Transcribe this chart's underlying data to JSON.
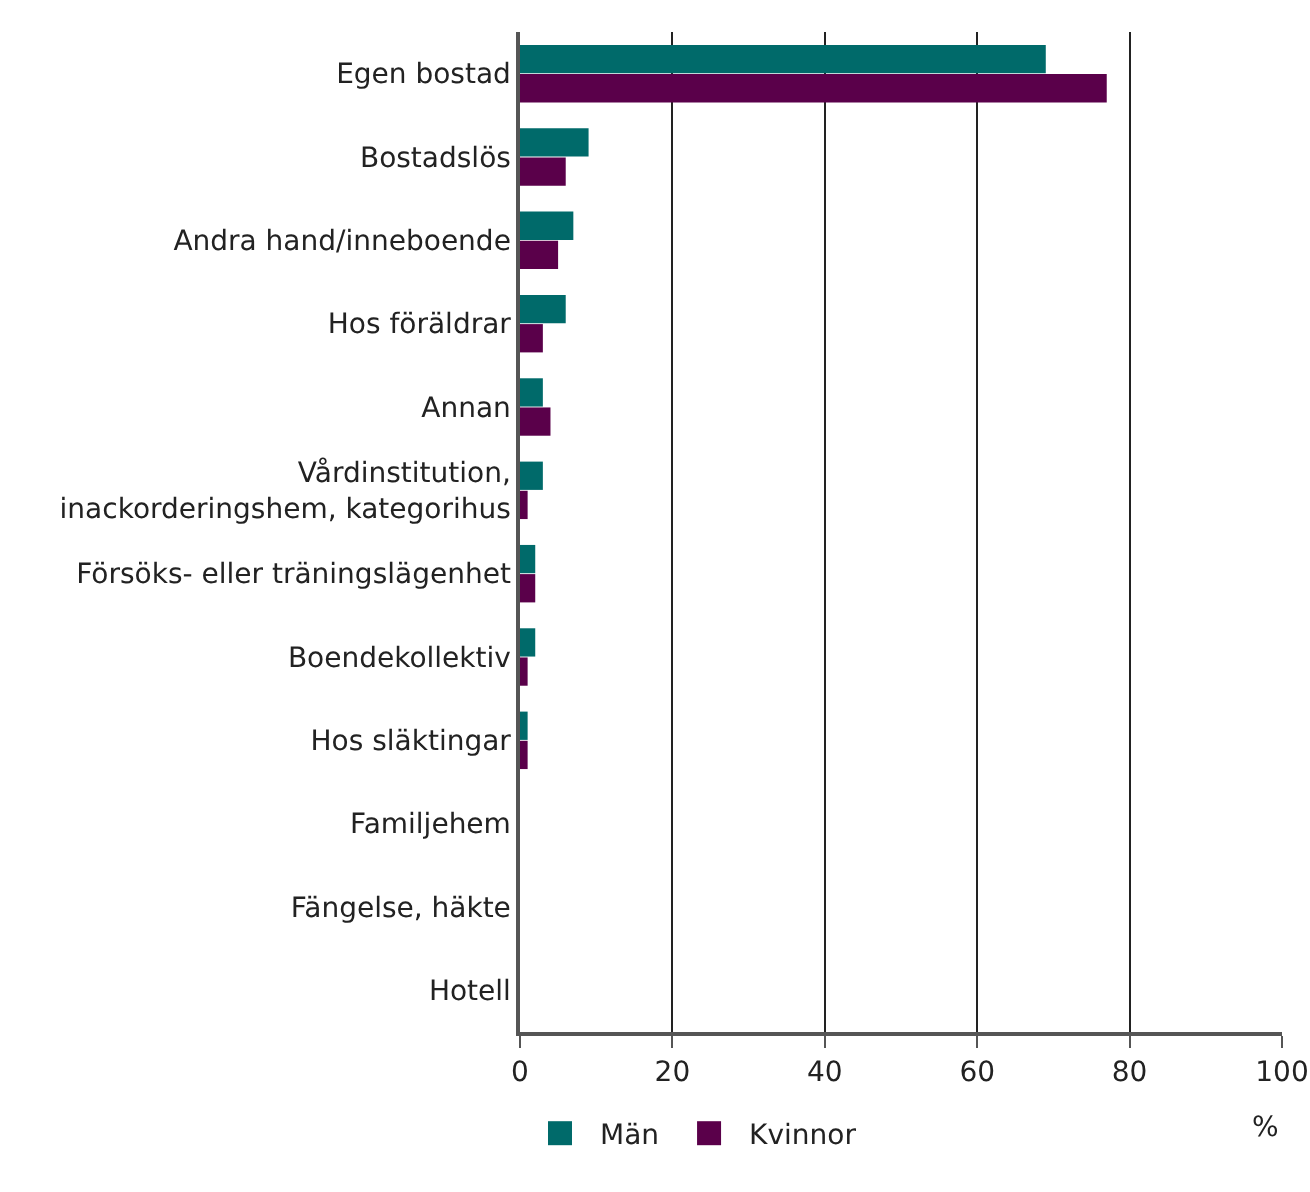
{
  "chart_data": {
    "type": "bar",
    "orientation": "horizontal",
    "xlabel": "%",
    "categories": [
      "Egen bostad",
      "Bostadslös",
      "Andra hand/inneboende",
      "Hos föräldrar",
      "Annan",
      "Vårdinstitution,\ninackorderingshem, kategorihus",
      "Försöks- eller träningslägenhet",
      "Boendekollektiv",
      "Hos släktingar",
      "Familjehem",
      "Fängelse, häkte",
      "Hotell"
    ],
    "series": [
      {
        "name": "Män",
        "color": "#006a6a",
        "values": [
          69,
          9,
          7,
          6,
          3,
          3,
          2,
          2,
          1,
          0,
          0,
          0
        ]
      },
      {
        "name": "Kvinnor",
        "color": "#5a004a",
        "values": [
          77,
          6,
          5,
          3,
          4,
          1,
          2,
          1,
          1,
          0,
          0,
          0
        ]
      }
    ],
    "xlim": [
      0,
      100
    ],
    "xticks": [
      0,
      20,
      40,
      60,
      80,
      100
    ],
    "grid": "x",
    "legend": "bottom left"
  }
}
